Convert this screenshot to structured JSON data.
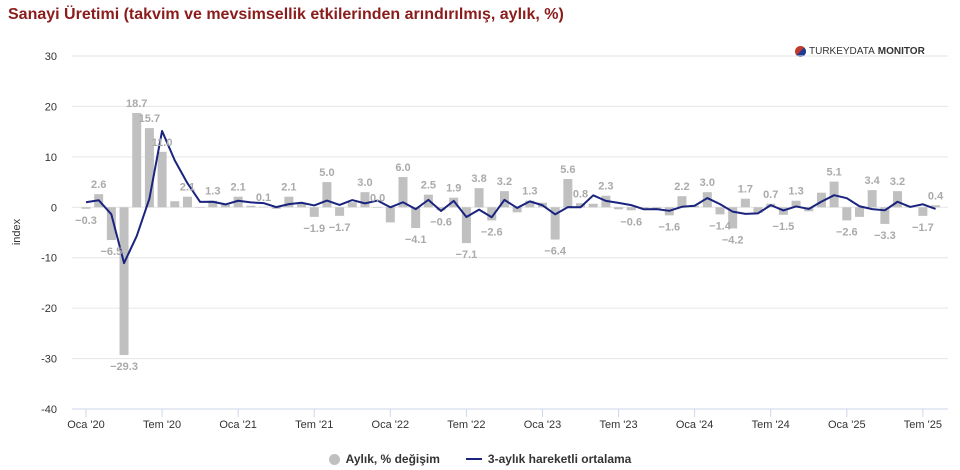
{
  "title": "Sanayi Üretimi (takvim ve mevsimsellik etkilerinden arındırılmış, aylık, %)",
  "logo": {
    "light": "TURKEYDATA",
    "bold": "MONITOR"
  },
  "colors": {
    "bar": "#c0c0c0",
    "line": "#1a237e",
    "label": "#aaaaaa",
    "title": "#8b1c1c"
  },
  "chart_data": {
    "type": "bar",
    "ylabel": "index",
    "ylim": [
      -40,
      30
    ],
    "yticks": [
      30,
      20,
      10,
      0,
      -10,
      -20,
      -30,
      -40
    ],
    "xtick_labels": [
      {
        "i": 0,
        "t": "Oca '20"
      },
      {
        "i": 6,
        "t": "Tem '20"
      },
      {
        "i": 12,
        "t": "Oca '21"
      },
      {
        "i": 18,
        "t": "Tem '21"
      },
      {
        "i": 24,
        "t": "Oca '22"
      },
      {
        "i": 30,
        "t": "Tem '22"
      },
      {
        "i": 36,
        "t": "Oca '23"
      },
      {
        "i": 42,
        "t": "Tem '23"
      },
      {
        "i": 48,
        "t": "Oca '24"
      },
      {
        "i": 54,
        "t": "Tem '24"
      },
      {
        "i": 60,
        "t": "Oca '25"
      },
      {
        "i": 66,
        "t": "Tem '25"
      }
    ],
    "series": [
      {
        "name": "Aylık, % değişim",
        "type": "bar",
        "values": [
          -0.3,
          2.6,
          -6.5,
          -29.3,
          18.7,
          15.7,
          11.0,
          1.2,
          2.1,
          -0.1,
          1.3,
          0.5,
          2.1,
          0.3,
          0.1,
          -0.3,
          2.1,
          0.9,
          -1.9,
          5.0,
          -1.7,
          1.0,
          3.0,
          0.0,
          -3.0,
          6.0,
          -4.1,
          2.5,
          -0.6,
          1.9,
          -7.1,
          3.8,
          -2.6,
          3.2,
          -1.0,
          1.3,
          0.9,
          -6.4,
          5.6,
          0.8,
          0.7,
          2.3,
          -0.4,
          -0.6,
          -0.2,
          -0.3,
          -1.6,
          2.2,
          0.3,
          3.0,
          -1.4,
          -4.2,
          1.7,
          -1.1,
          0.7,
          -1.5,
          1.3,
          -0.8,
          2.9,
          5.1,
          -2.6,
          -1.9,
          3.4,
          -3.3,
          3.2,
          0.3,
          -1.7,
          0.4
        ],
        "labeled": [
          0,
          1,
          2,
          3,
          4,
          5,
          6,
          8,
          10,
          12,
          14,
          16,
          18,
          19,
          20,
          22,
          23,
          25,
          26,
          27,
          28,
          29,
          30,
          31,
          32,
          33,
          35,
          37,
          38,
          39,
          41,
          43,
          46,
          47,
          49,
          50,
          51,
          52,
          54,
          55,
          56,
          59,
          60,
          62,
          63,
          64,
          66,
          67
        ]
      },
      {
        "name": "3-aylık hareketli ortalama",
        "type": "line",
        "values": [
          1.0,
          1.4,
          -1.4,
          -11.07,
          -5.7,
          1.7,
          15.13,
          9.3,
          4.77,
          1.07,
          1.1,
          0.57,
          1.3,
          0.97,
          0.83,
          0.03,
          0.63,
          0.9,
          0.37,
          1.33,
          0.47,
          1.43,
          0.77,
          1.33,
          0.0,
          1.0,
          -0.37,
          1.47,
          -0.73,
          1.27,
          -1.93,
          -0.47,
          -1.97,
          1.47,
          -0.13,
          1.17,
          0.4,
          -1.4,
          0.03,
          0.0,
          2.37,
          1.27,
          0.87,
          0.43,
          -0.4,
          -0.37,
          -0.7,
          0.1,
          0.3,
          1.83,
          0.63,
          -0.87,
          -1.3,
          -1.2,
          0.43,
          -0.63,
          0.17,
          -0.33,
          1.13,
          2.4,
          1.8,
          0.2,
          -0.37,
          -0.6,
          1.1,
          0.07,
          0.6,
          -0.33
        ]
      }
    ]
  }
}
